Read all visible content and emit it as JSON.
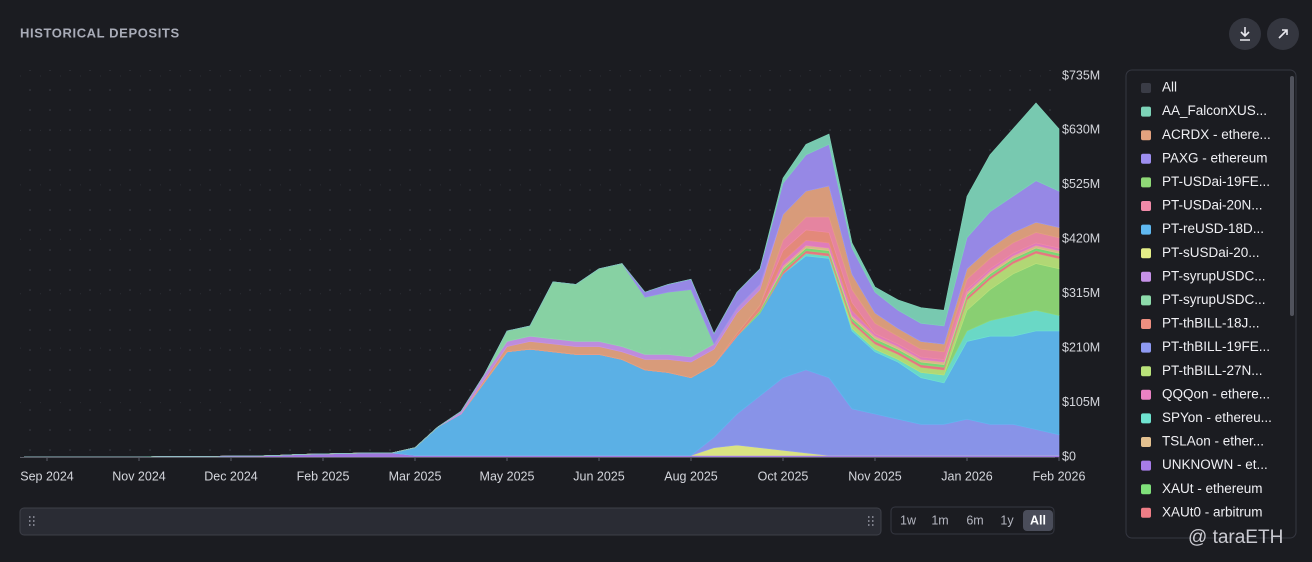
{
  "chart_data": {
    "type": "stacked_area",
    "title": "HISTORICAL DEPOSITS",
    "categories": [
      null,
      "Sep 2024",
      null,
      null,
      null,
      "Nov 2024",
      null,
      null,
      null,
      "Dec 2024",
      null,
      null,
      null,
      "Feb 2025",
      null,
      null,
      null,
      "Mar 2025",
      null,
      null,
      null,
      "May 2025",
      null,
      null,
      null,
      "Jun 2025",
      null,
      null,
      null,
      "Aug 2025",
      null,
      null,
      null,
      "Oct 2025",
      null,
      null,
      null,
      "Nov 2025",
      null,
      null,
      null,
      "Jan 2026",
      null,
      null,
      null,
      "Feb 2026"
    ],
    "ylim": [
      0,
      735
    ],
    "yticks": [
      {
        "value": 0,
        "label": "$0"
      },
      {
        "value": 105,
        "label": "$105M"
      },
      {
        "value": 210,
        "label": "$210M"
      },
      {
        "value": 315,
        "label": "$315M"
      },
      {
        "value": 420,
        "label": "$420M"
      },
      {
        "value": 525,
        "label": "$525M"
      },
      {
        "value": 630,
        "label": "$630M"
      },
      {
        "value": 735,
        "label": "$735M"
      }
    ],
    "grid": true,
    "legend_all_label": "All",
    "series": [
      {
        "name": "AA_FalconXUS...",
        "color": "#7dd3b8",
        "values": [
          0,
          0,
          0,
          0,
          0,
          0,
          0,
          0,
          0,
          0,
          0,
          0,
          0,
          0,
          0,
          0,
          0,
          0,
          0,
          0,
          0,
          0,
          0,
          0,
          0,
          0,
          0,
          0,
          0,
          0,
          0,
          0,
          0,
          10,
          20,
          20,
          10,
          10,
          20,
          30,
          30,
          80,
          110,
          130,
          150,
          120
        ]
      },
      {
        "name": "ACRDX - ethere...",
        "color": "#e3a27f",
        "values": [
          0,
          0,
          0,
          0,
          0,
          0,
          0,
          0,
          0,
          0,
          0,
          0,
          0,
          0,
          0,
          0,
          0,
          0,
          0,
          0,
          5,
          10,
          15,
          15,
          15,
          15,
          15,
          20,
          25,
          30,
          30,
          40,
          30,
          50,
          50,
          60,
          30,
          20,
          15,
          15,
          15,
          20,
          20,
          20,
          20,
          20
        ]
      },
      {
        "name": "PAXG - ethereum",
        "color": "#9d8ef0",
        "values": [
          0,
          0,
          0,
          0,
          0,
          0,
          0,
          0,
          0,
          0,
          0,
          0,
          0,
          0,
          0,
          0,
          0,
          0,
          0,
          0,
          0,
          0,
          0,
          0,
          0,
          0,
          0,
          10,
          15,
          20,
          20,
          30,
          30,
          60,
          70,
          80,
          50,
          40,
          35,
          35,
          35,
          60,
          70,
          70,
          80,
          70
        ]
      },
      {
        "name": "PT-USDai-19FE...",
        "color": "#8fd977",
        "values": [
          0,
          0,
          0,
          0,
          0,
          0,
          0,
          0,
          0,
          0,
          0,
          0,
          0,
          0,
          0,
          0,
          0,
          0,
          0,
          0,
          0,
          0,
          0,
          0,
          0,
          0,
          0,
          0,
          0,
          0,
          0,
          0,
          0,
          0,
          0,
          0,
          0,
          0,
          0,
          0,
          0,
          40,
          60,
          80,
          90,
          90
        ]
      },
      {
        "name": "PT-USDai-20N...",
        "color": "#f08aa8",
        "values": [
          0,
          0,
          0,
          0,
          0,
          0,
          0,
          0,
          0,
          0,
          0,
          0,
          0,
          0,
          0,
          0,
          0,
          0,
          0,
          0,
          0,
          0,
          0,
          0,
          0,
          0,
          0,
          0,
          0,
          0,
          0,
          0,
          0,
          20,
          25,
          30,
          25,
          20,
          15,
          15,
          15,
          20,
          20,
          20,
          20,
          20
        ]
      },
      {
        "name": "PT-reUSD-18D...",
        "color": "#5fb8f0",
        "values": [
          0,
          0,
          0,
          0,
          0,
          0,
          0,
          0,
          0,
          0,
          0,
          0,
          0,
          0,
          0,
          0,
          0,
          15,
          55,
          80,
          140,
          200,
          205,
          200,
          195,
          195,
          185,
          165,
          160,
          150,
          140,
          150,
          160,
          200,
          220,
          230,
          150,
          120,
          110,
          90,
          80,
          150,
          170,
          170,
          190,
          200
        ]
      },
      {
        "name": "PT-sUSDai-20...",
        "color": "#e5ee88",
        "values": [
          0,
          0,
          0,
          0,
          0,
          0,
          0,
          0,
          0,
          0,
          0,
          0,
          0,
          0,
          0,
          0,
          0,
          0,
          0,
          0,
          0,
          0,
          0,
          0,
          0,
          0,
          0,
          0,
          0,
          0,
          15,
          20,
          15,
          10,
          5,
          0,
          0,
          0,
          0,
          0,
          0,
          0,
          0,
          0,
          0,
          0
        ]
      },
      {
        "name": "PT-syrupUSDC...",
        "color": "#c692e8",
        "values": [
          0,
          0,
          0,
          0,
          0,
          0,
          0,
          0,
          0,
          0,
          0,
          0,
          0,
          0,
          0,
          0,
          0,
          0,
          0,
          5,
          10,
          10,
          10,
          10,
          10,
          10,
          10,
          10,
          10,
          10,
          10,
          10,
          10,
          0,
          0,
          0,
          0,
          0,
          0,
          0,
          0,
          0,
          0,
          0,
          0,
          0
        ]
      },
      {
        "name": "PT-syrupUSDC...",
        "color": "#8ddbab",
        "values": [
          0,
          0,
          0,
          0,
          0,
          0,
          0,
          0,
          0,
          0,
          0,
          0,
          0,
          0,
          0,
          0,
          0,
          0,
          0,
          0,
          0,
          20,
          20,
          110,
          110,
          140,
          160,
          110,
          120,
          130,
          0,
          0,
          0,
          0,
          0,
          0,
          0,
          0,
          0,
          0,
          0,
          0,
          0,
          0,
          0,
          0
        ]
      },
      {
        "name": "PT-thBILL-18J...",
        "color": "#ee8f80",
        "values": [
          0,
          0,
          0,
          0,
          0,
          0,
          0,
          0,
          0,
          0,
          0,
          0,
          0,
          0,
          0,
          0,
          0,
          0,
          0,
          0,
          0,
          0,
          0,
          0,
          0,
          0,
          0,
          0,
          0,
          0,
          0,
          5,
          10,
          20,
          20,
          20,
          15,
          0,
          0,
          0,
          0,
          0,
          0,
          0,
          0,
          0
        ]
      },
      {
        "name": "PT-thBILL-19FE...",
        "color": "#8e9af3",
        "values": [
          0,
          0,
          0,
          0,
          0,
          0,
          0,
          0,
          0,
          0,
          0,
          0,
          0,
          0,
          0,
          0,
          0,
          0,
          0,
          0,
          0,
          0,
          0,
          0,
          0,
          0,
          0,
          0,
          0,
          0,
          20,
          60,
          100,
          140,
          160,
          150,
          90,
          80,
          70,
          60,
          60,
          70,
          60,
          60,
          50,
          40
        ]
      },
      {
        "name": "PT-thBILL-27N...",
        "color": "#b9e27a",
        "values": [
          0,
          0,
          0,
          0,
          0,
          0,
          0,
          0,
          0,
          0,
          0,
          0,
          0,
          0,
          0,
          0,
          0,
          0,
          0,
          0,
          0,
          0,
          0,
          0,
          0,
          0,
          0,
          0,
          0,
          0,
          0,
          0,
          0,
          0,
          0,
          0,
          10,
          10,
          10,
          10,
          10,
          20,
          20,
          20,
          20,
          20
        ]
      },
      {
        "name": "QQQon - ethere...",
        "color": "#ea82c4",
        "values": [
          0,
          0,
          0,
          0,
          0,
          0,
          0,
          0,
          0,
          0,
          0,
          0,
          0,
          0,
          0,
          0,
          0,
          0,
          0,
          0,
          0,
          0,
          0,
          0,
          0,
          0,
          0,
          0,
          0,
          0,
          0,
          0,
          0,
          10,
          10,
          10,
          10,
          5,
          5,
          5,
          5,
          5,
          5,
          5,
          5,
          5
        ]
      },
      {
        "name": "SPYon - ethereu...",
        "color": "#6fe3d0",
        "values": [
          0,
          0,
          0,
          0,
          0,
          0,
          0,
          0,
          0,
          0,
          0,
          0,
          0,
          0,
          0,
          0,
          0,
          0,
          0,
          0,
          0,
          0,
          0,
          0,
          0,
          0,
          0,
          0,
          0,
          0,
          0,
          0,
          0,
          0,
          5,
          5,
          5,
          5,
          5,
          10,
          15,
          20,
          30,
          40,
          40,
          30
        ]
      },
      {
        "name": "TSLAon - ether...",
        "color": "#e3c08f",
        "values": [
          0,
          0,
          0,
          0,
          0,
          0,
          0,
          0,
          0,
          0,
          0,
          0,
          0,
          0,
          0,
          0,
          0,
          0,
          0,
          0,
          0,
          0,
          0,
          0,
          0,
          0,
          0,
          0,
          0,
          0,
          0,
          0,
          0,
          5,
          5,
          5,
          5,
          5,
          5,
          5,
          5,
          5,
          5,
          5,
          5,
          5
        ]
      },
      {
        "name": "UNKNOWN - et...",
        "color": "#a77ce8",
        "values": [
          0,
          0,
          0,
          0,
          0,
          0,
          1,
          1,
          1,
          2,
          2,
          3,
          5,
          6,
          7,
          8,
          8,
          3,
          3,
          3,
          3,
          3,
          3,
          3,
          3,
          3,
          3,
          3,
          3,
          3,
          3,
          3,
          3,
          3,
          3,
          3,
          3,
          3,
          3,
          3,
          3,
          3,
          3,
          3,
          3,
          3
        ]
      },
      {
        "name": "XAUt - ethereum",
        "color": "#7fe07a",
        "values": [
          0,
          0,
          0,
          0,
          0,
          0,
          0,
          0,
          0,
          0,
          0,
          0,
          0,
          0,
          0,
          0,
          0,
          0,
          0,
          0,
          0,
          0,
          0,
          0,
          0,
          0,
          0,
          0,
          0,
          0,
          0,
          0,
          5,
          5,
          5,
          5,
          5,
          5,
          5,
          5,
          5,
          5,
          5,
          5,
          5,
          5
        ]
      },
      {
        "name": "XAUt0 - arbitrum",
        "color": "#ee7d86",
        "values": [
          0,
          0,
          0,
          0,
          0,
          0,
          0,
          0,
          0,
          0,
          0,
          0,
          0,
          0,
          0,
          0,
          0,
          0,
          0,
          0,
          0,
          0,
          0,
          0,
          0,
          0,
          0,
          0,
          0,
          0,
          0,
          0,
          0,
          5,
          5,
          5,
          5,
          5,
          5,
          5,
          5,
          5,
          5,
          5,
          5,
          5
        ]
      }
    ],
    "range_buttons": [
      "1w",
      "1m",
      "6m",
      "1y",
      "All"
    ],
    "active_range": 4,
    "watermark": "@ taraETH"
  }
}
